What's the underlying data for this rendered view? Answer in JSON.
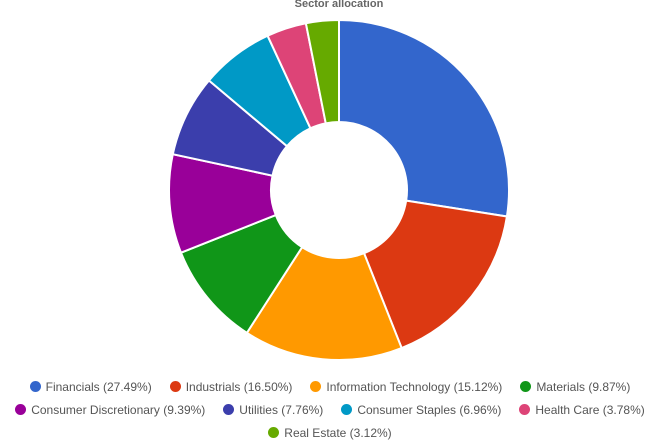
{
  "chart_data": {
    "type": "donut",
    "title": "Sector allocation",
    "categories": [
      "Financials (27.49%)",
      "Industrials (16.50%)",
      "Information Technology (15.12%)",
      "Materials (9.87%)",
      "Consumer Discretionary (9.39%)",
      "Utilities (7.76%)",
      "Consumer Staples (6.96%)",
      "Health Care (3.78%)",
      "Real Estate (3.12%)"
    ],
    "values": [
      27.49,
      16.5,
      15.12,
      9.87,
      9.39,
      7.76,
      6.96,
      3.78,
      3.12
    ],
    "colors": [
      "#3366cc",
      "#dc3912",
      "#ff9900",
      "#109618",
      "#990099",
      "#3b3eac",
      "#0099c6",
      "#dd4477",
      "#66aa00"
    ],
    "legend": "bottom"
  }
}
